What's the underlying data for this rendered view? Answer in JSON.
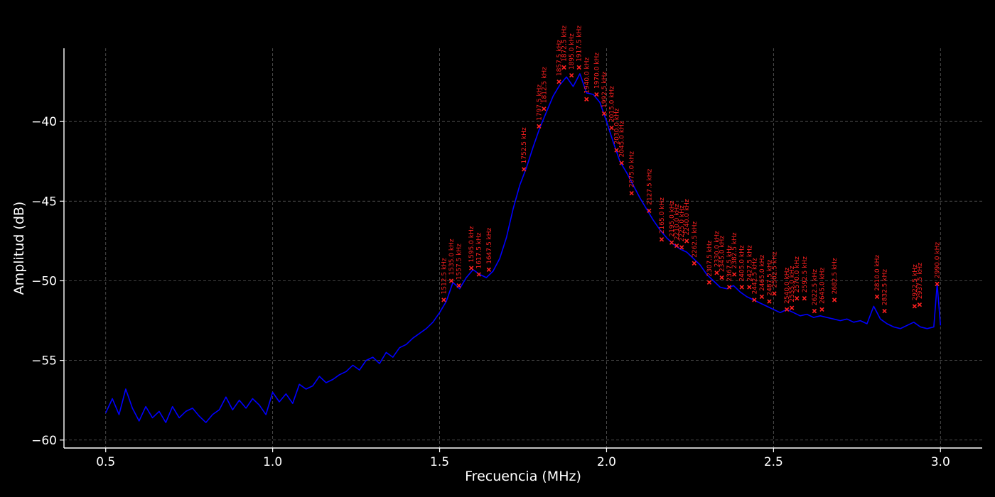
{
  "chart_data": {
    "type": "line",
    "title": "",
    "xlabel": "Frecuencia (MHz)",
    "ylabel": "Amplitud (dB)",
    "xlim": [
      0.375,
      3.125
    ],
    "ylim": [
      -60.5,
      -35.4
    ],
    "xticks": [
      0.5,
      1.0,
      1.5,
      2.0,
      2.5,
      3.0
    ],
    "xtick_labels": [
      "0.5",
      "1.0",
      "1.5",
      "2.0",
      "2.5",
      "3.0"
    ],
    "yticks": [
      -60,
      -55,
      -50,
      -45,
      -40
    ],
    "ytick_labels": [
      "−60",
      "−55",
      "−50",
      "−45",
      "−40"
    ],
    "grid": true,
    "series": [
      {
        "name": "",
        "color": "#0000ff",
        "x": [
          0.5,
          0.52,
          0.54,
          0.56,
          0.58,
          0.6,
          0.62,
          0.64,
          0.66,
          0.68,
          0.7,
          0.72,
          0.74,
          0.76,
          0.78,
          0.8,
          0.82,
          0.84,
          0.86,
          0.88,
          0.9,
          0.92,
          0.94,
          0.96,
          0.98,
          1.0,
          1.02,
          1.04,
          1.06,
          1.08,
          1.1,
          1.12,
          1.14,
          1.16,
          1.18,
          1.2,
          1.22,
          1.24,
          1.26,
          1.28,
          1.3,
          1.32,
          1.34,
          1.36,
          1.38,
          1.4,
          1.42,
          1.44,
          1.46,
          1.48,
          1.5,
          1.52,
          1.54,
          1.56,
          1.58,
          1.6,
          1.62,
          1.64,
          1.66,
          1.68,
          1.7,
          1.72,
          1.74,
          1.76,
          1.78,
          1.8,
          1.82,
          1.84,
          1.86,
          1.88,
          1.9,
          1.92,
          1.94,
          1.96,
          1.98,
          2.0,
          2.02,
          2.04,
          2.06,
          2.08,
          2.1,
          2.12,
          2.14,
          2.16,
          2.18,
          2.2,
          2.22,
          2.24,
          2.26,
          2.28,
          2.3,
          2.32,
          2.34,
          2.36,
          2.38,
          2.4,
          2.42,
          2.44,
          2.46,
          2.48,
          2.5,
          2.52,
          2.54,
          2.56,
          2.58,
          2.6,
          2.62,
          2.64,
          2.66,
          2.68,
          2.7,
          2.72,
          2.74,
          2.76,
          2.78,
          2.8,
          2.82,
          2.84,
          2.86,
          2.88,
          2.9,
          2.92,
          2.94,
          2.96,
          2.98,
          2.99,
          3.0
        ],
        "y": [
          -58.3,
          -57.4,
          -58.4,
          -56.8,
          -58.0,
          -58.8,
          -57.9,
          -58.6,
          -58.2,
          -58.9,
          -57.9,
          -58.6,
          -58.2,
          -58.0,
          -58.5,
          -58.9,
          -58.4,
          -58.1,
          -57.3,
          -58.1,
          -57.5,
          -58.0,
          -57.4,
          -57.8,
          -58.4,
          -57.0,
          -57.6,
          -57.1,
          -57.7,
          -56.5,
          -56.8,
          -56.6,
          -56.0,
          -56.4,
          -56.2,
          -55.9,
          -55.7,
          -55.3,
          -55.6,
          -55.0,
          -54.8,
          -55.2,
          -54.5,
          -54.8,
          -54.2,
          -54.0,
          -53.6,
          -53.3,
          -53.0,
          -52.6,
          -52.0,
          -51.3,
          -50.1,
          -50.5,
          -49.8,
          -49.3,
          -49.6,
          -49.8,
          -49.4,
          -48.6,
          -47.3,
          -45.5,
          -44.0,
          -42.9,
          -41.6,
          -40.4,
          -39.4,
          -38.4,
          -37.7,
          -37.2,
          -37.8,
          -37.0,
          -38.2,
          -38.3,
          -38.8,
          -40.0,
          -41.3,
          -42.5,
          -43.2,
          -44.0,
          -44.8,
          -45.5,
          -46.2,
          -46.8,
          -47.3,
          -47.7,
          -48.0,
          -48.2,
          -48.6,
          -49.0,
          -49.6,
          -50.0,
          -50.4,
          -50.5,
          -50.3,
          -50.7,
          -51.0,
          -51.2,
          -51.4,
          -51.6,
          -51.8,
          -52.0,
          -51.8,
          -52.0,
          -52.2,
          -52.1,
          -52.3,
          -52.2,
          -52.3,
          -52.4,
          -52.5,
          -52.4,
          -52.6,
          -52.5,
          -52.7,
          -51.6,
          -52.4,
          -52.7,
          -52.9,
          -53.0,
          -52.8,
          -52.6,
          -52.9,
          -53.0,
          -52.9,
          -50.2,
          -52.8
        ]
      }
    ],
    "annotations": [
      {
        "label": "1512.5 kHz",
        "x": 1.5125,
        "y": -51.2
      },
      {
        "label": "1535.0 kHz",
        "x": 1.535,
        "y": -50.0
      },
      {
        "label": "1557.5 kHz",
        "x": 1.5575,
        "y": -50.3
      },
      {
        "label": "1595.0 kHz",
        "x": 1.595,
        "y": -49.2
      },
      {
        "label": "1617.5 kHz",
        "x": 1.6175,
        "y": -49.6
      },
      {
        "label": "1647.5 kHz",
        "x": 1.6475,
        "y": -49.3
      },
      {
        "label": "1752.5 kHz",
        "x": 1.7525,
        "y": -43.0
      },
      {
        "label": "1797.5 kHz",
        "x": 1.7975,
        "y": -40.3
      },
      {
        "label": "1812.5 kHz",
        "x": 1.8125,
        "y": -39.2
      },
      {
        "label": "1857.5 kHz",
        "x": 1.8575,
        "y": -37.5
      },
      {
        "label": "1872.5 kHz",
        "x": 1.8725,
        "y": -36.6
      },
      {
        "label": "1895.0 kHz",
        "x": 1.895,
        "y": -37.1
      },
      {
        "label": "1917.5 kHz",
        "x": 1.9175,
        "y": -36.6
      },
      {
        "label": "1940.0 kHz",
        "x": 1.94,
        "y": -38.6
      },
      {
        "label": "1970.0 kHz",
        "x": 1.97,
        "y": -38.3
      },
      {
        "label": "1992.5 kHz",
        "x": 1.9925,
        "y": -39.5
      },
      {
        "label": "2015.0 kHz",
        "x": 2.015,
        "y": -40.4
      },
      {
        "label": "2030.0 kHz",
        "x": 2.03,
        "y": -41.8
      },
      {
        "label": "2045.0 kHz",
        "x": 2.045,
        "y": -42.6
      },
      {
        "label": "2075.0 kHz",
        "x": 2.075,
        "y": -44.5
      },
      {
        "label": "2127.5 kHz",
        "x": 2.1275,
        "y": -45.6
      },
      {
        "label": "2165.0 kHz",
        "x": 2.165,
        "y": -47.4
      },
      {
        "label": "2195.0 kHz",
        "x": 2.195,
        "y": -47.6
      },
      {
        "label": "2210.0 kHz",
        "x": 2.21,
        "y": -47.8
      },
      {
        "label": "2225.0 kHz",
        "x": 2.225,
        "y": -47.9
      },
      {
        "label": "2240.0 kHz",
        "x": 2.24,
        "y": -47.5
      },
      {
        "label": "2262.5 kHz",
        "x": 2.2625,
        "y": -48.9
      },
      {
        "label": "2307.5 kHz",
        "x": 2.3075,
        "y": -50.1
      },
      {
        "label": "2330.0 kHz",
        "x": 2.33,
        "y": -49.5
      },
      {
        "label": "2345.0 kHz",
        "x": 2.345,
        "y": -49.8
      },
      {
        "label": "2367.5 kHz",
        "x": 2.3675,
        "y": -50.4
      },
      {
        "label": "2382.5 kHz",
        "x": 2.3825,
        "y": -49.6
      },
      {
        "label": "2405.0 kHz",
        "x": 2.405,
        "y": -50.4
      },
      {
        "label": "2427.5 kHz",
        "x": 2.4275,
        "y": -50.4
      },
      {
        "label": "2442.5 kHz",
        "x": 2.4425,
        "y": -51.2
      },
      {
        "label": "2465.0 kHz",
        "x": 2.465,
        "y": -51.0
      },
      {
        "label": "2487.5 kHz",
        "x": 2.4875,
        "y": -51.3
      },
      {
        "label": "2502.5 kHz",
        "x": 2.5025,
        "y": -50.8
      },
      {
        "label": "2540.0 kHz",
        "x": 2.54,
        "y": -51.8
      },
      {
        "label": "2555.0 kHz",
        "x": 2.555,
        "y": -51.7
      },
      {
        "label": "2570.0 kHz",
        "x": 2.57,
        "y": -51.1
      },
      {
        "label": "2592.5 kHz",
        "x": 2.5925,
        "y": -51.1
      },
      {
        "label": "2622.5 kHz",
        "x": 2.6225,
        "y": -51.9
      },
      {
        "label": "2645.0 kHz",
        "x": 2.645,
        "y": -51.8
      },
      {
        "label": "2682.5 kHz",
        "x": 2.6825,
        "y": -51.2
      },
      {
        "label": "2810.0 kHz",
        "x": 2.81,
        "y": -51.0
      },
      {
        "label": "2832.5 kHz",
        "x": 2.8325,
        "y": -51.9
      },
      {
        "label": "2922.5 kHz",
        "x": 2.9225,
        "y": -51.6
      },
      {
        "label": "2937.5 kHz",
        "x": 2.9375,
        "y": -51.5
      },
      {
        "label": "2990.0 kHz",
        "x": 2.99,
        "y": -50.2
      }
    ]
  },
  "colors": {
    "background": "#000000",
    "line": "#0000ff",
    "peak_marker": "#ff2020",
    "axes": "#ffffff",
    "grid": "#5a5a5a"
  }
}
